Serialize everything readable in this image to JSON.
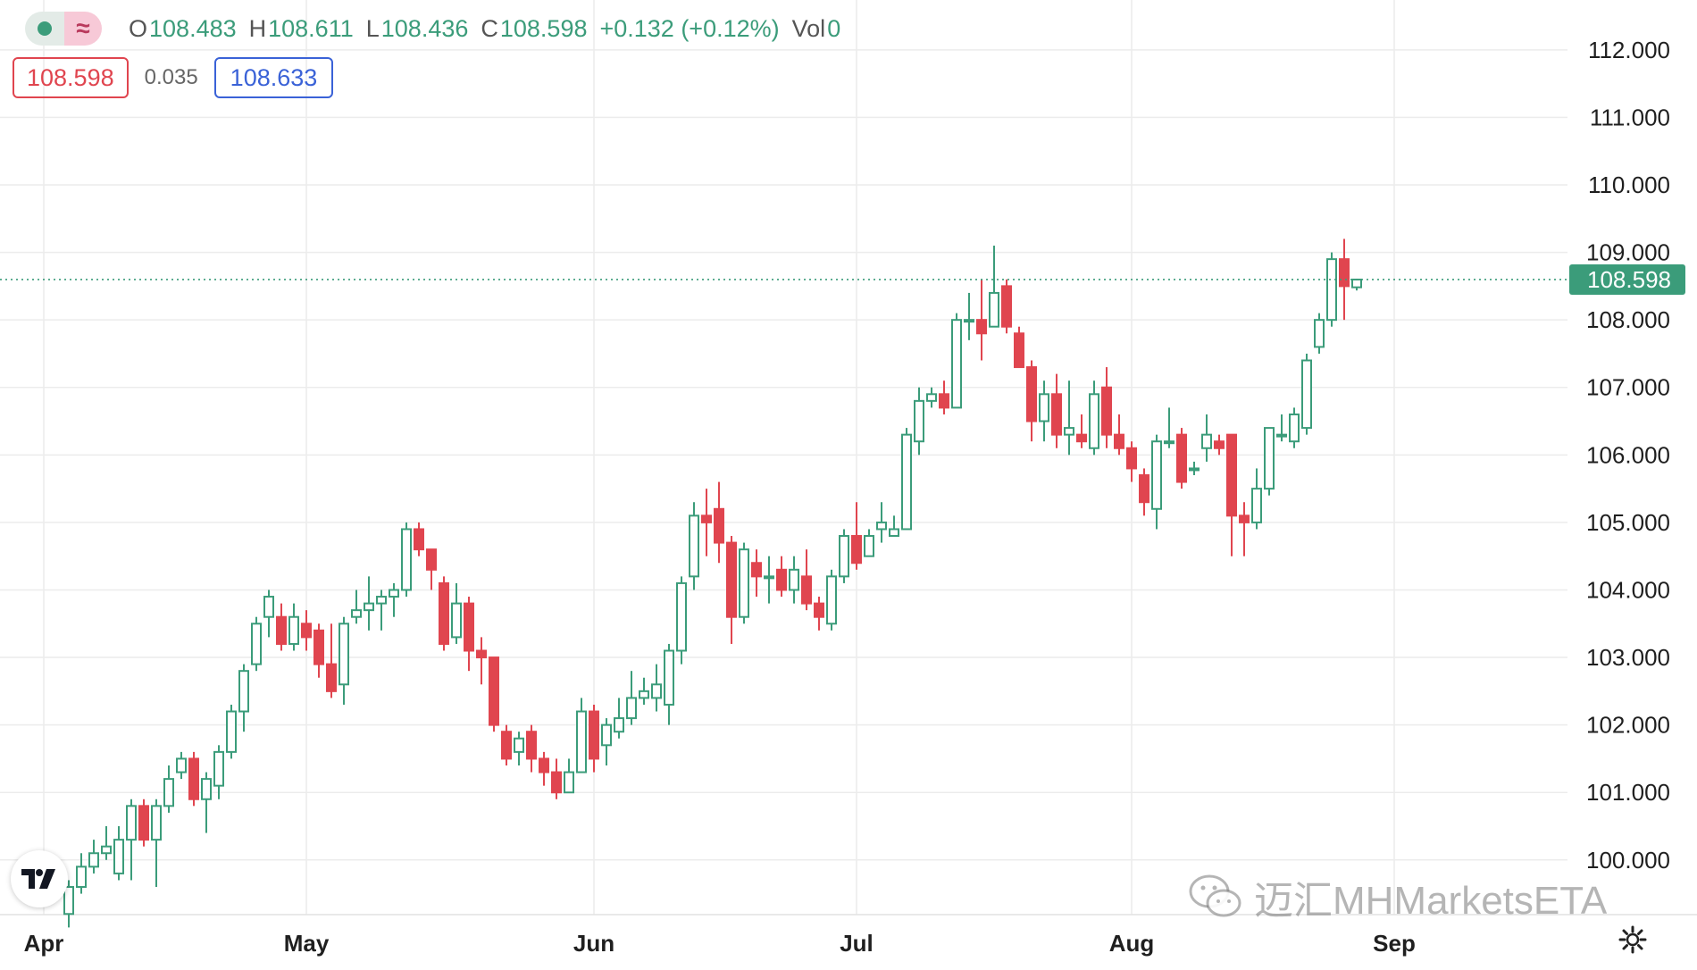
{
  "legend": {
    "open_key": "O",
    "open": "108.483",
    "high_key": "H",
    "high": "108.611",
    "low_key": "L",
    "low": "108.436",
    "close_key": "C",
    "close": "108.598",
    "change": "+0.132 (+0.12%)",
    "vol_key": "Vol",
    "vol": "0",
    "icon_a": "series-visibility-icon",
    "icon_b_glyph": "≈"
  },
  "quote": {
    "bid": "108.598",
    "spread": "0.035",
    "ask": "108.633"
  },
  "watermark": "迈汇MHMarketsETA",
  "colors": {
    "up": "#3b9c7a",
    "down": "#e0454f",
    "bid": "#e0454f",
    "ask": "#3a62d7"
  },
  "chart_data": {
    "type": "candlestick",
    "y_ticks": [
      "112.000",
      "111.000",
      "110.000",
      "109.000",
      "108.000",
      "107.000",
      "106.000",
      "105.000",
      "104.000",
      "103.000",
      "102.000",
      "101.000",
      "100.000"
    ],
    "x_ticks": [
      {
        "label": "Apr",
        "index": 0
      },
      {
        "label": "May",
        "index": 21
      },
      {
        "label": "Jun",
        "index": 44
      },
      {
        "label": "Jul",
        "index": 65
      },
      {
        "label": "Aug",
        "index": 87
      },
      {
        "label": "Sep",
        "index": 108
      }
    ],
    "ylim": [
      99.4,
      112.7
    ],
    "last_price": "108.598",
    "grid": true,
    "candles": [
      [
        99.2,
        99.6,
        99.0,
        99.7
      ],
      [
        99.6,
        99.9,
        99.5,
        100.1
      ],
      [
        99.9,
        100.1,
        99.8,
        100.3
      ],
      [
        100.1,
        100.2,
        100.0,
        100.5
      ],
      [
        99.8,
        100.3,
        99.7,
        100.5
      ],
      [
        100.3,
        100.8,
        99.7,
        100.9
      ],
      [
        100.8,
        100.3,
        100.2,
        100.9
      ],
      [
        100.3,
        100.8,
        99.6,
        100.9
      ],
      [
        100.8,
        101.2,
        100.7,
        101.4
      ],
      [
        101.3,
        101.5,
        101.2,
        101.6
      ],
      [
        101.5,
        100.9,
        100.8,
        101.6
      ],
      [
        100.9,
        101.2,
        100.4,
        101.3
      ],
      [
        101.1,
        101.6,
        100.9,
        101.7
      ],
      [
        101.6,
        102.2,
        101.5,
        102.3
      ],
      [
        102.2,
        102.8,
        101.9,
        102.9
      ],
      [
        102.9,
        103.5,
        102.8,
        103.6
      ],
      [
        103.6,
        103.9,
        103.3,
        104.0
      ],
      [
        103.6,
        103.2,
        103.1,
        103.8
      ],
      [
        103.2,
        103.6,
        103.1,
        103.8
      ],
      [
        103.5,
        103.3,
        103.1,
        103.7
      ],
      [
        103.4,
        102.9,
        102.7,
        103.5
      ],
      [
        102.9,
        102.5,
        102.4,
        103.5
      ],
      [
        102.6,
        103.5,
        102.3,
        103.6
      ],
      [
        103.6,
        103.7,
        103.5,
        104.0
      ],
      [
        103.7,
        103.8,
        103.4,
        104.2
      ],
      [
        103.8,
        103.9,
        103.4,
        104.0
      ],
      [
        103.9,
        104.0,
        103.6,
        104.1
      ],
      [
        104.0,
        104.9,
        103.9,
        105.0
      ],
      [
        104.9,
        104.6,
        104.5,
        105.0
      ],
      [
        104.6,
        104.3,
        104.0,
        104.6
      ],
      [
        104.1,
        103.2,
        103.1,
        104.2
      ],
      [
        103.3,
        103.8,
        103.2,
        104.1
      ],
      [
        103.8,
        103.1,
        102.8,
        103.9
      ],
      [
        103.1,
        103.0,
        102.6,
        103.3
      ],
      [
        103.0,
        102.0,
        101.9,
        103.0
      ],
      [
        101.9,
        101.5,
        101.4,
        102.0
      ],
      [
        101.6,
        101.8,
        101.4,
        101.9
      ],
      [
        101.9,
        101.5,
        101.3,
        102.0
      ],
      [
        101.5,
        101.3,
        101.1,
        101.6
      ],
      [
        101.3,
        101.0,
        100.9,
        101.5
      ],
      [
        101.0,
        101.3,
        101.0,
        101.5
      ],
      [
        101.3,
        102.2,
        101.3,
        102.4
      ],
      [
        102.2,
        101.5,
        101.3,
        102.3
      ],
      [
        101.7,
        102.0,
        101.4,
        102.1
      ],
      [
        101.9,
        102.1,
        101.8,
        102.4
      ],
      [
        102.1,
        102.4,
        102.0,
        102.8
      ],
      [
        102.4,
        102.5,
        102.3,
        102.7
      ],
      [
        102.4,
        102.6,
        102.2,
        102.9
      ],
      [
        102.3,
        103.1,
        102.0,
        103.2
      ],
      [
        103.1,
        104.1,
        102.9,
        104.2
      ],
      [
        104.2,
        105.1,
        104.0,
        105.3
      ],
      [
        105.1,
        105.0,
        104.5,
        105.5
      ],
      [
        105.2,
        104.7,
        104.4,
        105.6
      ],
      [
        104.7,
        103.6,
        103.2,
        104.8
      ],
      [
        103.6,
        104.6,
        103.5,
        104.7
      ],
      [
        104.4,
        104.2,
        103.9,
        104.6
      ],
      [
        104.2,
        104.2,
        103.8,
        104.5
      ],
      [
        104.3,
        104.0,
        103.9,
        104.5
      ],
      [
        104.0,
        104.3,
        103.8,
        104.5
      ],
      [
        104.2,
        103.8,
        103.7,
        104.6
      ],
      [
        103.8,
        103.6,
        103.4,
        103.9
      ],
      [
        103.5,
        104.2,
        103.4,
        104.3
      ],
      [
        104.2,
        104.8,
        104.1,
        104.9
      ],
      [
        104.8,
        104.4,
        104.3,
        105.3
      ],
      [
        104.5,
        104.8,
        104.5,
        104.9
      ],
      [
        104.9,
        105.0,
        104.7,
        105.3
      ],
      [
        104.8,
        104.9,
        104.8,
        105.1
      ],
      [
        104.9,
        106.3,
        104.9,
        106.4
      ],
      [
        106.2,
        106.8,
        106.0,
        107.0
      ],
      [
        106.8,
        106.9,
        106.7,
        107.0
      ],
      [
        106.9,
        106.7,
        106.6,
        107.1
      ],
      [
        106.7,
        108.0,
        106.7,
        108.1
      ],
      [
        108.0,
        108.0,
        107.7,
        108.4
      ],
      [
        108.0,
        107.8,
        107.4,
        108.6
      ],
      [
        107.9,
        108.4,
        107.9,
        109.1
      ],
      [
        108.5,
        107.9,
        107.8,
        108.6
      ],
      [
        107.8,
        107.3,
        107.3,
        107.9
      ],
      [
        107.3,
        106.5,
        106.2,
        107.4
      ],
      [
        106.5,
        106.9,
        106.2,
        107.1
      ],
      [
        106.9,
        106.3,
        106.1,
        107.2
      ],
      [
        106.3,
        106.4,
        106.0,
        107.1
      ],
      [
        106.3,
        106.2,
        106.1,
        106.6
      ],
      [
        106.1,
        106.9,
        106.0,
        107.1
      ],
      [
        107.0,
        106.3,
        106.1,
        107.3
      ],
      [
        106.3,
        106.1,
        106.0,
        106.6
      ],
      [
        106.1,
        105.8,
        105.6,
        106.2
      ],
      [
        105.7,
        105.3,
        105.1,
        105.8
      ],
      [
        105.2,
        106.2,
        104.9,
        106.3
      ],
      [
        106.2,
        106.2,
        106.1,
        106.7
      ],
      [
        106.3,
        105.6,
        105.5,
        106.4
      ],
      [
        105.8,
        105.8,
        105.7,
        105.9
      ],
      [
        106.1,
        106.3,
        105.9,
        106.6
      ],
      [
        106.2,
        106.1,
        106.0,
        106.3
      ],
      [
        106.3,
        105.1,
        104.5,
        106.3
      ],
      [
        105.1,
        105.0,
        104.5,
        105.3
      ],
      [
        105.0,
        105.5,
        104.9,
        105.8
      ],
      [
        105.5,
        106.4,
        105.4,
        106.4
      ],
      [
        106.3,
        106.3,
        106.2,
        106.6
      ],
      [
        106.2,
        106.6,
        106.1,
        106.7
      ],
      [
        106.4,
        107.4,
        106.3,
        107.5
      ],
      [
        107.6,
        108.0,
        107.5,
        108.1
      ],
      [
        108.0,
        108.9,
        107.9,
        109.0
      ],
      [
        108.9,
        108.5,
        108.0,
        109.2
      ],
      [
        108.483,
        108.598,
        108.436,
        108.611
      ]
    ]
  }
}
